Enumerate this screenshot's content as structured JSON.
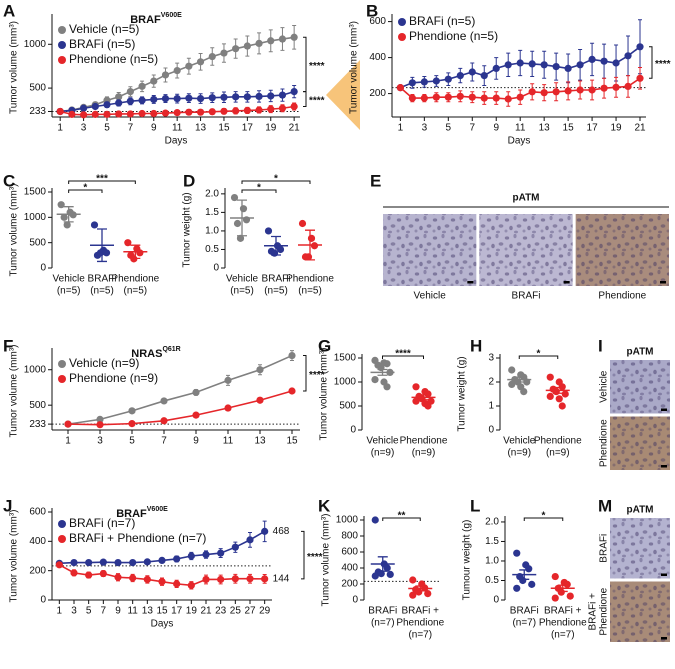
{
  "chart_data": [
    {
      "panel": "A",
      "type": "line",
      "title": "BRAF",
      "title_sup": "V600E",
      "x_label": "Days",
      "y_label": "Tumor volume (mm³)",
      "x": [
        1,
        2,
        3,
        4,
        5,
        6,
        7,
        8,
        9,
        10,
        11,
        12,
        13,
        14,
        15,
        16,
        17,
        18,
        19,
        20,
        21
      ],
      "xlim": [
        0.3,
        21.5
      ],
      "xticks": [
        1,
        3,
        5,
        7,
        9,
        11,
        13,
        15,
        17,
        19,
        21
      ],
      "ylim": [
        170,
        1300
      ],
      "yticks": [
        233,
        500,
        1000
      ],
      "reference_line": 233,
      "series": [
        {
          "name": "Vehicle (n=5)",
          "color": "#808080",
          "values": [
            233,
            250,
            280,
            310,
            360,
            400,
            460,
            520,
            580,
            650,
            700,
            750,
            800,
            860,
            900,
            950,
            980,
            1010,
            1040,
            1060,
            1080
          ],
          "errors": [
            10,
            15,
            25,
            30,
            40,
            50,
            55,
            60,
            70,
            80,
            85,
            90,
            95,
            100,
            105,
            110,
            115,
            120,
            125,
            130,
            135
          ]
        },
        {
          "name": "BRAFi (n=5)",
          "color": "#2b3590",
          "values": [
            233,
            245,
            270,
            290,
            310,
            330,
            350,
            360,
            370,
            380,
            380,
            385,
            380,
            390,
            395,
            400,
            400,
            405,
            410,
            420,
            460
          ],
          "errors": [
            10,
            15,
            20,
            25,
            30,
            35,
            40,
            40,
            45,
            45,
            50,
            50,
            55,
            55,
            60,
            60,
            60,
            65,
            65,
            70,
            70
          ]
        },
        {
          "name": "Phendione (n=5)",
          "color": "#e5262a",
          "values": [
            233,
            200,
            195,
            200,
            200,
            205,
            205,
            210,
            210,
            215,
            220,
            225,
            225,
            230,
            235,
            240,
            245,
            250,
            260,
            270,
            290
          ],
          "errors": [
            10,
            15,
            15,
            15,
            20,
            20,
            20,
            20,
            25,
            25,
            25,
            30,
            30,
            30,
            30,
            35,
            35,
            35,
            40,
            40,
            40
          ]
        }
      ],
      "significance": [
        "****",
        "****"
      ]
    },
    {
      "panel": "B",
      "type": "line",
      "x_label": "Days",
      "y_label": "Tumor volume (mm³)",
      "x": [
        1,
        2,
        3,
        4,
        5,
        6,
        7,
        8,
        9,
        10,
        11,
        12,
        13,
        14,
        15,
        16,
        17,
        18,
        19,
        20,
        21
      ],
      "xlim": [
        0.3,
        21.5
      ],
      "xticks": [
        1,
        3,
        5,
        7,
        9,
        11,
        13,
        15,
        17,
        19,
        21
      ],
      "ylim": [
        70,
        620
      ],
      "yticks": [
        200,
        400,
        600
      ],
      "reference_line": 233,
      "series": [
        {
          "name": "BRAFi (n=5)",
          "color": "#2b3590",
          "values": [
            233,
            260,
            265,
            270,
            280,
            300,
            320,
            300,
            340,
            360,
            370,
            365,
            360,
            350,
            340,
            360,
            390,
            380,
            370,
            410,
            460
          ],
          "errors": [
            10,
            30,
            30,
            30,
            35,
            40,
            50,
            55,
            60,
            65,
            70,
            70,
            75,
            75,
            80,
            85,
            90,
            95,
            100,
            110,
            150
          ]
        },
        {
          "name": "Phendione (n=5)",
          "color": "#e5262a",
          "values": [
            233,
            175,
            175,
            180,
            180,
            185,
            180,
            175,
            175,
            170,
            180,
            210,
            205,
            210,
            215,
            220,
            220,
            230,
            235,
            240,
            285
          ],
          "errors": [
            10,
            20,
            20,
            25,
            25,
            30,
            30,
            35,
            35,
            40,
            40,
            45,
            45,
            50,
            50,
            50,
            55,
            55,
            55,
            60,
            60
          ]
        }
      ],
      "significance": [
        "****"
      ]
    },
    {
      "panel": "C",
      "type": "strip",
      "y_label": "Tumor volume (mm³)",
      "ylim": [
        0,
        1500
      ],
      "yticks": [
        0,
        500,
        1000,
        1500
      ],
      "groups": [
        {
          "labels": [
            "Vehicle",
            "(n=5)"
          ],
          "color": "#808080",
          "values": [
            1250,
            1100,
            1050,
            1000,
            850
          ],
          "mean": 1060,
          "error": 150
        },
        {
          "labels": [
            "BRAFi",
            "(n=5)"
          ],
          "color": "#2b3590",
          "values": [
            850,
            350,
            300,
            250,
            300
          ],
          "mean": 450,
          "error": 320
        },
        {
          "labels": [
            "Phendione",
            "(n=5)"
          ],
          "color": "#e5262a",
          "values": [
            500,
            380,
            300,
            250,
            180
          ],
          "mean": 320,
          "error": 130
        }
      ],
      "significance": [
        "*",
        "***"
      ]
    },
    {
      "panel": "D",
      "type": "strip",
      "y_label": "Tumor weight (g)",
      "ylim": [
        0,
        2.05
      ],
      "yticks": [
        0,
        0.5,
        {
          "value": 1,
          "label": "1.0"
        },
        1.5,
        {
          "value": 2,
          "label": "2.0"
        }
      ],
      "groups": [
        {
          "labels": [
            "Vehicle",
            "(n=5)"
          ],
          "color": "#808080",
          "values": [
            1.9,
            1.6,
            1.3,
            1.2,
            0.8
          ],
          "mean": 1.35,
          "error": 0.48
        },
        {
          "labels": [
            "BRAFi",
            "(n=5)"
          ],
          "color": "#2b3590",
          "values": [
            1.0,
            0.6,
            0.5,
            0.45,
            0.4
          ],
          "mean": 0.6,
          "error": 0.25
        },
        {
          "labels": [
            "Phendione",
            "(n=5)"
          ],
          "color": "#e5262a",
          "values": [
            1.2,
            0.8,
            0.6,
            0.3,
            0.3
          ],
          "mean": 0.62,
          "error": 0.4
        }
      ],
      "significance": [
        "*",
        "*"
      ]
    },
    {
      "panel": "F",
      "type": "line",
      "title": "NRAS",
      "title_sup": "Q61R",
      "y_label": "Tumor volume (mm³)",
      "x": [
        1,
        3,
        5,
        7,
        9,
        11,
        13,
        15
      ],
      "xlim": [
        0,
        15.5
      ],
      "xticks": [
        1,
        3,
        5,
        7,
        9,
        11,
        13,
        15
      ],
      "ylim": [
        150,
        1250
      ],
      "yticks": [
        233,
        500,
        1000
      ],
      "reference_line": 233,
      "series": [
        {
          "name": "Vehicle (n=9)",
          "color": "#808080",
          "values": [
            233,
            300,
            420,
            560,
            680,
            850,
            1000,
            1200
          ],
          "errors": [
            5,
            15,
            20,
            30,
            40,
            70,
            70,
            70
          ]
        },
        {
          "name": "Phendione (n=9)",
          "color": "#e5262a",
          "values": [
            233,
            225,
            240,
            280,
            360,
            460,
            570,
            700
          ],
          "errors": [
            5,
            10,
            10,
            15,
            15,
            20,
            15,
            30
          ]
        }
      ],
      "significance": [
        "****"
      ]
    },
    {
      "panel": "G",
      "type": "strip",
      "y_label": "Tumor volume (mm³)",
      "ylim": [
        0,
        1500
      ],
      "yticks": [
        0,
        500,
        1000,
        1500
      ],
      "groups": [
        {
          "labels": [
            "Vehicle",
            "(n=9)"
          ],
          "color": "#808080",
          "values": [
            1450,
            1400,
            1380,
            1350,
            1300,
            1200,
            1050,
            1000,
            900
          ],
          "mean": 1200,
          "error": 60
        },
        {
          "labels": [
            "Phendione",
            "(n=9)"
          ],
          "color": "#e5262a",
          "values": [
            900,
            800,
            750,
            700,
            650,
            600,
            600,
            550,
            500
          ],
          "mean": 680,
          "error": 50
        }
      ],
      "significance": [
        "****"
      ]
    },
    {
      "panel": "H",
      "type": "strip",
      "y_label": "Tumor weight (g)",
      "ylim": [
        0,
        3
      ],
      "yticks": [
        0,
        1,
        2,
        3
      ],
      "groups": [
        {
          "labels": [
            "Vehicle",
            "(n=9)"
          ],
          "color": "#808080",
          "values": [
            2.5,
            2.3,
            2.2,
            2.1,
            2.0,
            2.0,
            1.9,
            1.8,
            1.6
          ],
          "mean": 2.1,
          "error": 0.1
        },
        {
          "labels": [
            "Phendione",
            "(n=9)"
          ],
          "color": "#e5262a",
          "values": [
            2.2,
            2.0,
            1.8,
            1.7,
            1.6,
            1.5,
            1.4,
            1.3,
            1.0
          ],
          "mean": 1.65,
          "error": 0.12
        }
      ],
      "significance": [
        "*"
      ]
    },
    {
      "panel": "J",
      "type": "line",
      "title": "BRAF",
      "title_sup": "V600E",
      "x_label": "Days",
      "y_label": "Tumor volume (mm³)",
      "x": [
        1,
        3,
        5,
        7,
        9,
        11,
        13,
        15,
        17,
        19,
        21,
        23,
        25,
        27,
        29
      ],
      "xlim": [
        0,
        30
      ],
      "xticks": [
        1,
        3,
        5,
        7,
        9,
        11,
        13,
        15,
        17,
        19,
        21,
        23,
        25,
        27,
        29
      ],
      "ylim": [
        0,
        600
      ],
      "yticks": [
        0,
        200,
        400,
        600
      ],
      "reference_line": 233,
      "series": [
        {
          "name": "BRAFi (n=7)",
          "color": "#2b3590",
          "values": [
            250,
            255,
            255,
            258,
            255,
            255,
            260,
            270,
            280,
            300,
            310,
            320,
            360,
            410,
            468
          ],
          "errors": [
            10,
            10,
            10,
            10,
            10,
            10,
            15,
            15,
            20,
            25,
            25,
            30,
            35,
            50,
            70
          ],
          "value_labels": [
            null,
            null,
            null,
            null,
            null,
            null,
            null,
            null,
            null,
            null,
            null,
            null,
            null,
            null,
            "468"
          ]
        },
        {
          "name": "BRAFi + Phendione (n=7)",
          "color": "#e5262a",
          "values": [
            240,
            185,
            170,
            180,
            155,
            150,
            140,
            125,
            110,
            100,
            140,
            140,
            145,
            145,
            144
          ],
          "errors": [
            10,
            20,
            20,
            20,
            25,
            25,
            25,
            25,
            25,
            25,
            30,
            30,
            30,
            30,
            30
          ],
          "value_labels": [
            null,
            null,
            null,
            null,
            null,
            null,
            null,
            null,
            null,
            null,
            null,
            null,
            null,
            null,
            "144"
          ]
        }
      ],
      "significance": [
        "****"
      ]
    },
    {
      "panel": "K",
      "type": "strip",
      "y_label": "Tumor volume (mm³)",
      "ylim": [
        0,
        1000
      ],
      "yticks": [
        0,
        200,
        400,
        600,
        800,
        1000
      ],
      "reference_line": 233,
      "groups": [
        {
          "labels": [
            "BRAFi",
            "(n=7)"
          ],
          "color": "#2b3590",
          "values": [
            1000,
            450,
            400,
            350,
            330,
            320,
            300
          ],
          "mean": 450,
          "error": 90
        },
        {
          "labels": [
            "BRAFi +",
            "Phendione",
            "(n=7)"
          ],
          "color": "#e5262a",
          "values": [
            250,
            200,
            150,
            130,
            100,
            80,
            60
          ],
          "mean": 144,
          "error": 30
        }
      ],
      "significance": [
        "**"
      ]
    },
    {
      "panel": "L",
      "type": "strip",
      "y_label": "Tumour weight (g)",
      "ylim": [
        0,
        2.05
      ],
      "yticks": [
        0,
        0.5,
        {
          "value": 1,
          "label": "1.0"
        },
        1.5,
        {
          "value": 2,
          "label": "2.0"
        }
      ],
      "groups": [
        {
          "labels": [
            "BRAFi",
            "(n=7)"
          ],
          "color": "#2b3590",
          "values": [
            1.2,
            0.9,
            0.8,
            0.6,
            0.5,
            0.4,
            0.3
          ],
          "mean": 0.65,
          "error": 0.12
        },
        {
          "labels": [
            "BRAFi +",
            "Phendione",
            "(n=7)"
          ],
          "color": "#e5262a",
          "values": [
            0.6,
            0.45,
            0.4,
            0.3,
            0.2,
            0.1,
            0.05
          ],
          "mean": 0.3,
          "error": 0.08
        }
      ],
      "significance": [
        "*"
      ]
    }
  ],
  "image_panels": [
    {
      "panel": "E",
      "title": "pATM",
      "label_side": "bottom",
      "labels": [
        [
          "Vehicle"
        ],
        [
          "BRAFi"
        ],
        [
          "Phendione"
        ]
      ],
      "colors": [
        "#b7b4cf",
        "#bcb8d2",
        "#a98c7d"
      ]
    },
    {
      "panel": "I",
      "title": "pATM",
      "label_side": "left",
      "labels": [
        [
          "Vehicle"
        ],
        [
          "Phendione"
        ]
      ],
      "colors": [
        "#aaa9c8",
        "#a88a74"
      ]
    },
    {
      "panel": "M",
      "title": "pATM",
      "label_side": "left",
      "labels": [
        [
          "BRAFi"
        ],
        [
          "BRAFi +",
          "Phendione"
        ]
      ],
      "colors": [
        "#b4b3d0",
        "#a88b78"
      ]
    }
  ]
}
